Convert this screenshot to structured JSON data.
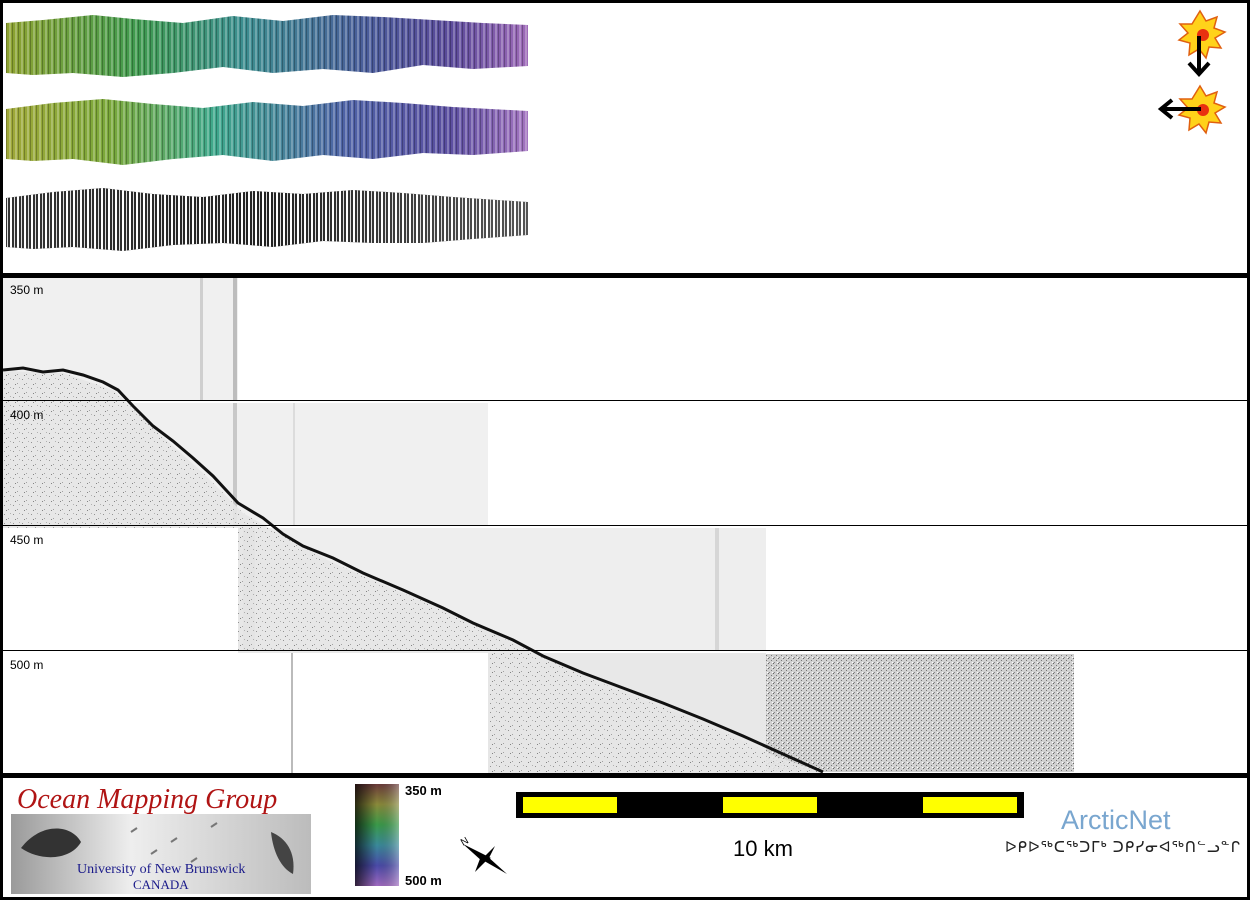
{
  "profile": {
    "depth_labels": [
      "350 m",
      "400 m",
      "450 m",
      "500 m"
    ]
  },
  "legend": {
    "colorbar_top": "350 m",
    "colorbar_bottom": "500 m",
    "scale_bar": "10 km",
    "north_arrow_letter": "N"
  },
  "logos": {
    "omg_title": "Ocean Mapping Group",
    "omg_university": "University of New Brunswick",
    "omg_country": "CANADA",
    "arcticnet_name": "ArcticNet",
    "arcticnet_syllabics": "ᐅᑭᐅᖅᑕᖅᑐᒥᒃ ᑐᑭᓯᓂᐊᖅᑎᓪᓗᓐᒋ"
  },
  "icons": {
    "sun_illumination_north": "sun-arrow-down-icon",
    "sun_illumination_east": "sun-arrow-left-icon",
    "north_arrow": "north-arrow-icon"
  },
  "colors": {
    "scale_yellow": "#ffff00",
    "scale_black": "#000000",
    "omg_red": "#b01414",
    "arcticnet_blue": "#79a6cf"
  }
}
